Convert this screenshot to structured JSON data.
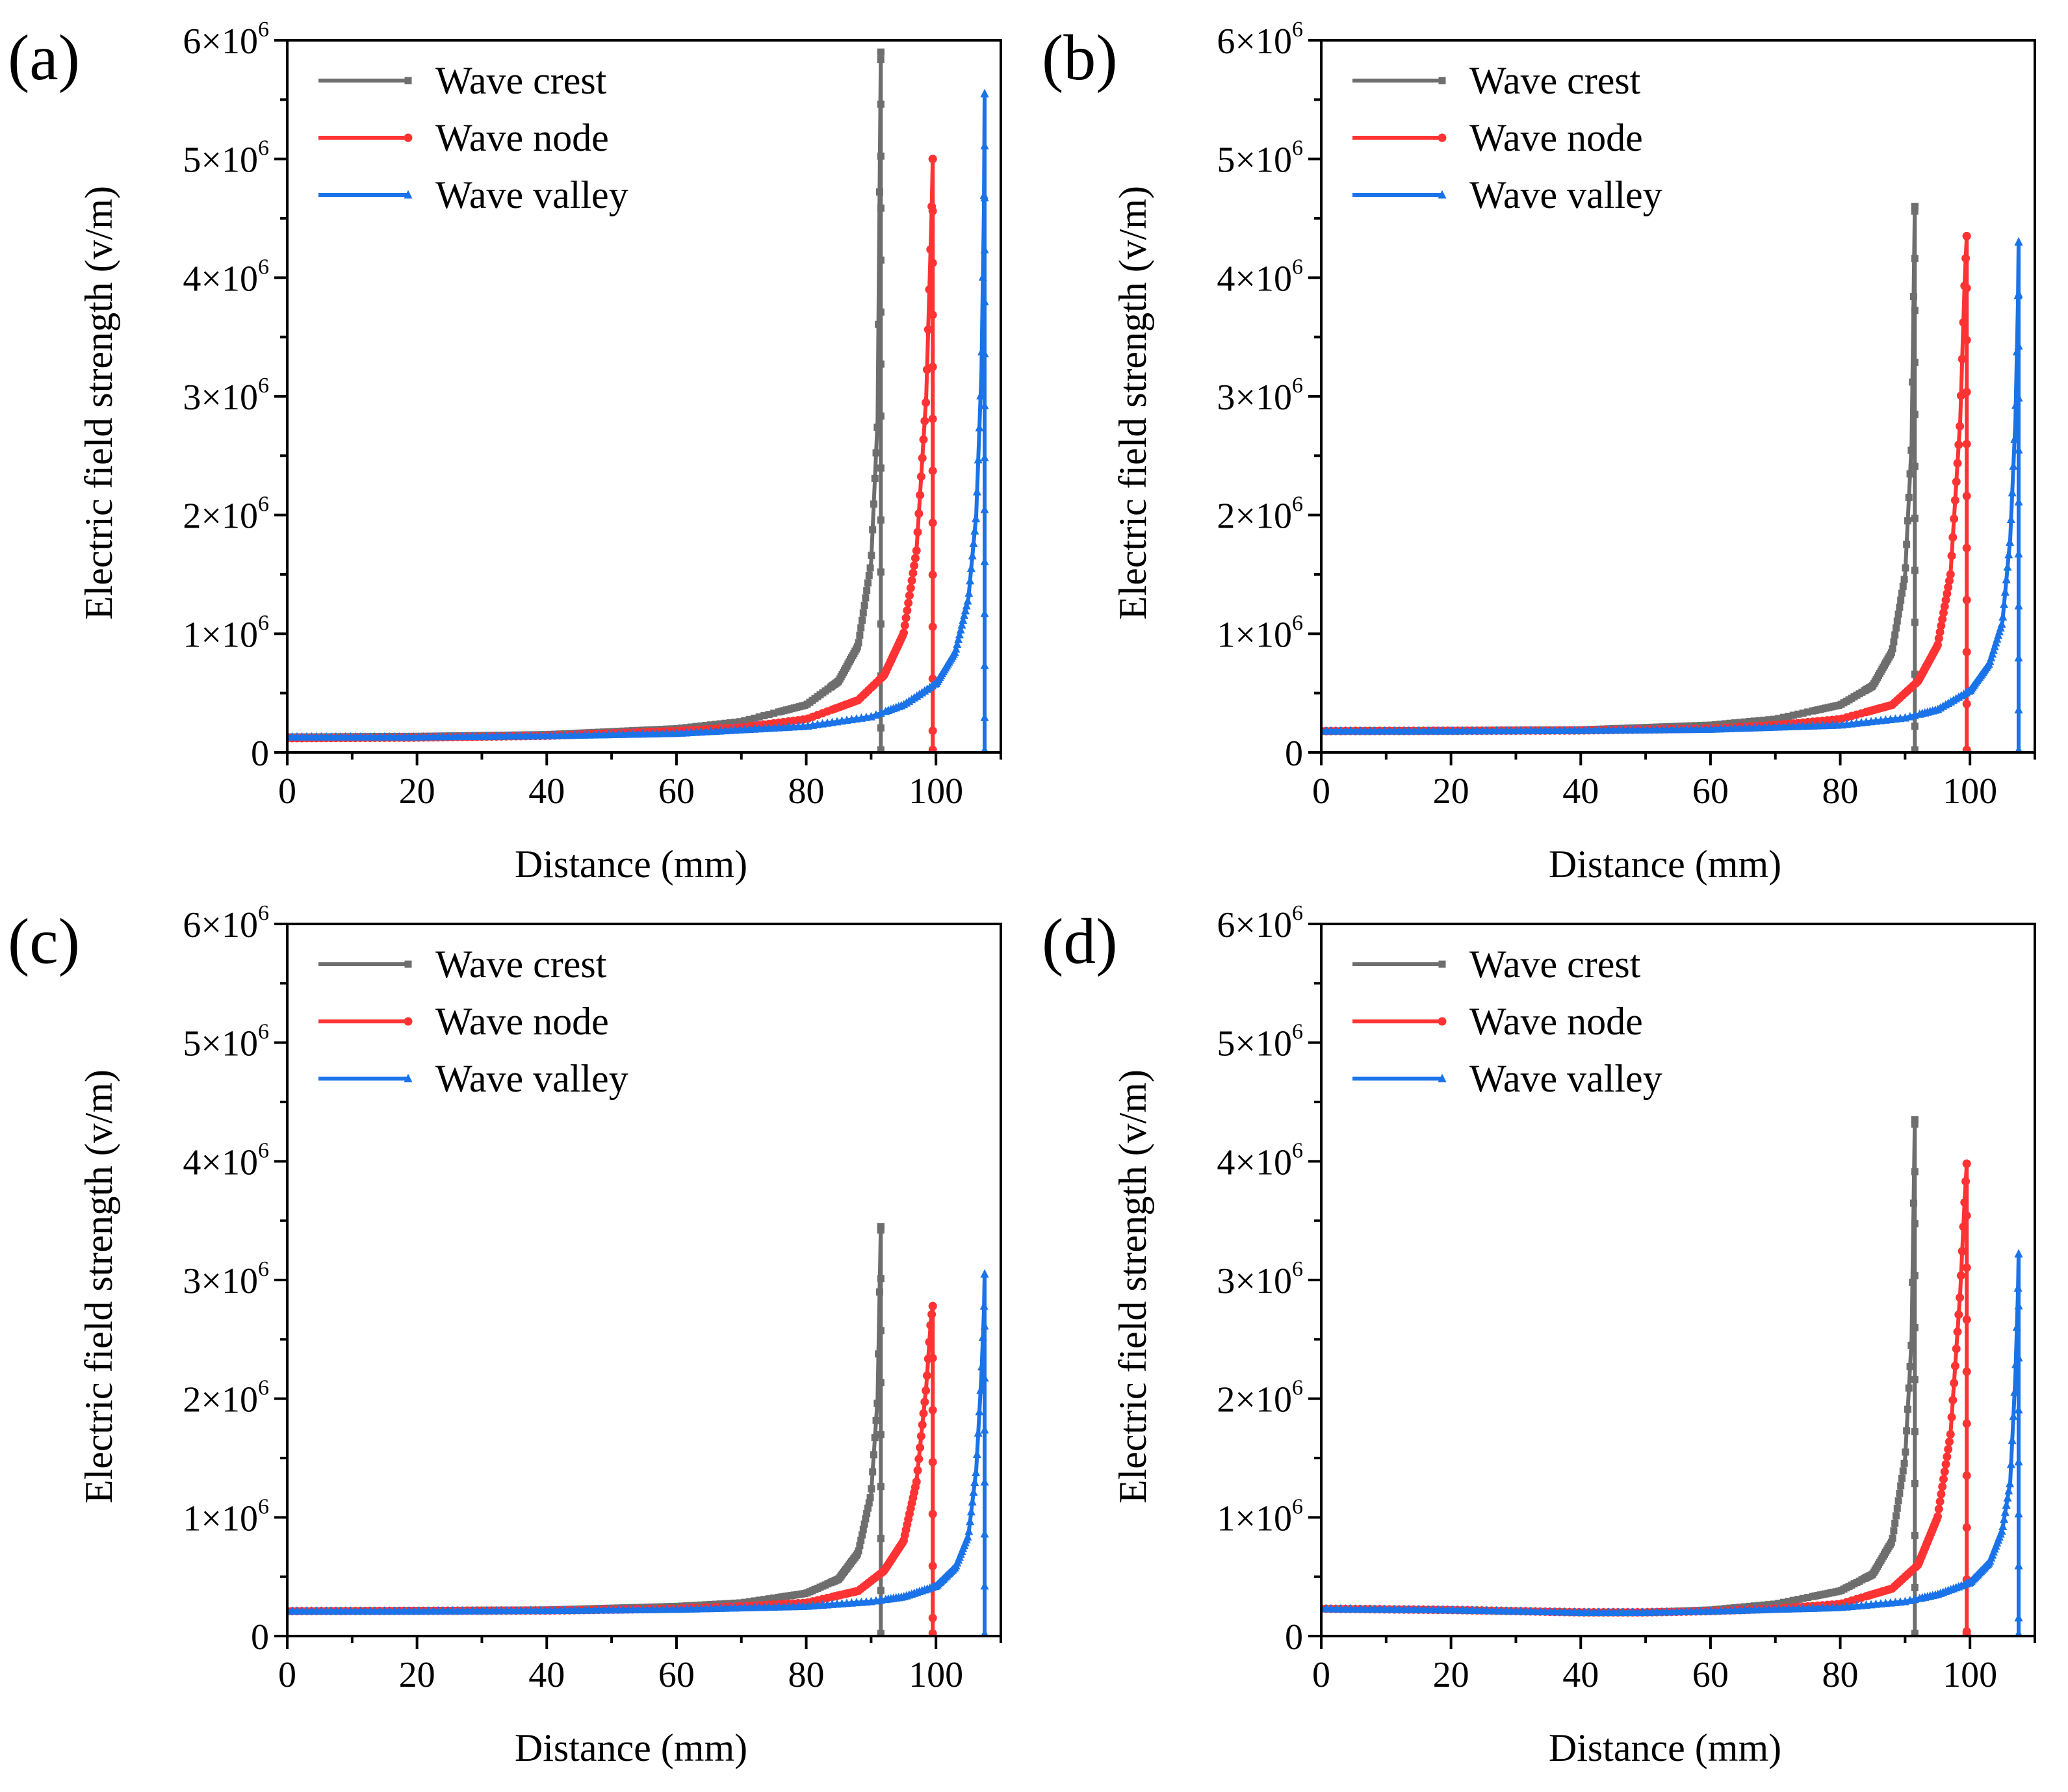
{
  "figure": {
    "layout": "2x2 grid",
    "panels": [
      "a",
      "b",
      "c",
      "d"
    ]
  },
  "colors": {
    "wave_crest": "#6e6e6e",
    "wave_node": "#ff3333",
    "wave_valley": "#1a73e8",
    "axis": "#000000"
  },
  "chart_data": [
    {
      "panel": "(a)",
      "type": "line",
      "xlabel": "Distance (mm)",
      "ylabel": "Electric field strength (v/m)",
      "xlim": [
        0,
        110
      ],
      "ylim": [
        0,
        6000000
      ],
      "xticks": [
        0,
        20,
        40,
        60,
        80,
        100
      ],
      "xtick_labels": [
        "0",
        "20",
        "40",
        "60",
        "80",
        "100"
      ],
      "yticks": [
        0,
        1000000,
        2000000,
        3000000,
        4000000,
        5000000,
        6000000
      ],
      "ytick_labels": [
        {
          "mantissa": "0",
          "exp": ""
        },
        {
          "mantissa": "1×10",
          "exp": "6"
        },
        {
          "mantissa": "2×10",
          "exp": "6"
        },
        {
          "mantissa": "3×10",
          "exp": "6"
        },
        {
          "mantissa": "4×10",
          "exp": "6"
        },
        {
          "mantissa": "5×10",
          "exp": "6"
        },
        {
          "mantissa": "6×10",
          "exp": "6"
        }
      ],
      "legend": [
        "Wave crest",
        "Wave node",
        "Wave valley"
      ],
      "legend_position": "top-left",
      "series": [
        {
          "name": "Wave crest",
          "marker": "square",
          "color": "#6e6e6e",
          "x": [
            0,
            20,
            40,
            60,
            70,
            80,
            85,
            88,
            90,
            91,
            91.5,
            91.5
          ],
          "y": [
            130000,
            135000,
            150000,
            200000,
            260000,
            400000,
            600000,
            900000,
            1600000,
            2800000,
            5900000,
            0
          ]
        },
        {
          "name": "Wave node",
          "marker": "circle",
          "color": "#ff3333",
          "x": [
            0,
            20,
            40,
            60,
            70,
            80,
            88,
            92,
            95,
            97,
            98.5,
            99.3,
            99.5,
            99.5
          ],
          "y": [
            120000,
            125000,
            140000,
            180000,
            210000,
            280000,
            440000,
            650000,
            1000000,
            1700000,
            3000000,
            4500000,
            5000000,
            0
          ]
        },
        {
          "name": "Wave valley",
          "marker": "triangle",
          "color": "#1a73e8",
          "x": [
            0,
            20,
            40,
            60,
            80,
            90,
            95,
            100,
            103,
            105,
            106.2,
            107,
            107.4,
            107.5,
            107.5
          ],
          "y": [
            130000,
            130000,
            140000,
            160000,
            220000,
            300000,
            400000,
            580000,
            850000,
            1300000,
            2000000,
            3200000,
            4600000,
            5550000,
            0
          ]
        }
      ]
    },
    {
      "panel": "(b)",
      "type": "line",
      "xlabel": "Distance (mm)",
      "ylabel": "Electric field strength (v/m)",
      "xlim": [
        0,
        110
      ],
      "ylim": [
        0,
        6000000
      ],
      "xticks": [
        0,
        20,
        40,
        60,
        80,
        100
      ],
      "xtick_labels": [
        "0",
        "20",
        "40",
        "60",
        "80",
        "100"
      ],
      "yticks": [
        0,
        1000000,
        2000000,
        3000000,
        4000000,
        5000000,
        6000000
      ],
      "ytick_labels": [
        {
          "mantissa": "0",
          "exp": ""
        },
        {
          "mantissa": "1×10",
          "exp": "6"
        },
        {
          "mantissa": "2×10",
          "exp": "6"
        },
        {
          "mantissa": "3×10",
          "exp": "6"
        },
        {
          "mantissa": "4×10",
          "exp": "6"
        },
        {
          "mantissa": "5×10",
          "exp": "6"
        },
        {
          "mantissa": "6×10",
          "exp": "6"
        }
      ],
      "legend": [
        "Wave crest",
        "Wave node",
        "Wave valley"
      ],
      "legend_position": "top-left",
      "series": [
        {
          "name": "Wave crest",
          "marker": "square",
          "color": "#6e6e6e",
          "x": [
            0,
            20,
            40,
            60,
            70,
            80,
            85,
            88,
            90,
            91,
            91.5,
            91.5
          ],
          "y": [
            180000,
            185000,
            190000,
            230000,
            280000,
            400000,
            560000,
            850000,
            1500000,
            2600000,
            4600000,
            0
          ]
        },
        {
          "name": "Wave node",
          "marker": "circle",
          "color": "#ff3333",
          "x": [
            0,
            20,
            40,
            60,
            70,
            80,
            88,
            92,
            95,
            97,
            98.5,
            99.2,
            99.5,
            99.5
          ],
          "y": [
            180000,
            182000,
            185000,
            200000,
            230000,
            280000,
            400000,
            600000,
            900000,
            1500000,
            2800000,
            4000000,
            4350000,
            0
          ]
        },
        {
          "name": "Wave valley",
          "marker": "triangle",
          "color": "#1a73e8",
          "x": [
            0,
            20,
            40,
            60,
            80,
            90,
            95,
            100,
            103,
            105,
            106.2,
            107,
            107.4,
            107.5,
            107.5
          ],
          "y": [
            180000,
            180000,
            185000,
            195000,
            230000,
            290000,
            360000,
            520000,
            750000,
            1100000,
            1800000,
            2800000,
            3800000,
            4300000,
            0
          ]
        }
      ]
    },
    {
      "panel": "(c)",
      "type": "line",
      "xlabel": "Distance (mm)",
      "ylabel": "Electric field strength (v/m)",
      "xlim": [
        0,
        110
      ],
      "ylim": [
        0,
        6000000
      ],
      "xticks": [
        0,
        20,
        40,
        60,
        80,
        100
      ],
      "xtick_labels": [
        "0",
        "20",
        "40",
        "60",
        "80",
        "100"
      ],
      "yticks": [
        0,
        1000000,
        2000000,
        3000000,
        4000000,
        5000000,
        6000000
      ],
      "ytick_labels": [
        {
          "mantissa": "0",
          "exp": ""
        },
        {
          "mantissa": "1×10",
          "exp": "6"
        },
        {
          "mantissa": "2×10",
          "exp": "6"
        },
        {
          "mantissa": "3×10",
          "exp": "6"
        },
        {
          "mantissa": "4×10",
          "exp": "6"
        },
        {
          "mantissa": "5×10",
          "exp": "6"
        },
        {
          "mantissa": "6×10",
          "exp": "6"
        }
      ],
      "legend": [
        "Wave crest",
        "Wave node",
        "Wave valley"
      ],
      "legend_position": "top-left",
      "series": [
        {
          "name": "Wave crest",
          "marker": "square",
          "color": "#6e6e6e",
          "x": [
            0,
            20,
            40,
            60,
            70,
            80,
            85,
            88,
            90,
            91,
            91.5,
            91.5
          ],
          "y": [
            210000,
            215000,
            220000,
            250000,
            280000,
            360000,
            480000,
            700000,
            1200000,
            2000000,
            3450000,
            0
          ]
        },
        {
          "name": "Wave node",
          "marker": "circle",
          "color": "#ff3333",
          "x": [
            0,
            20,
            40,
            60,
            70,
            80,
            88,
            92,
            95,
            97,
            98.5,
            99.2,
            99.5,
            99.5
          ],
          "y": [
            210000,
            212000,
            215000,
            230000,
            250000,
            280000,
            380000,
            550000,
            800000,
            1300000,
            2100000,
            2650000,
            2780000,
            0
          ]
        },
        {
          "name": "Wave valley",
          "marker": "triangle",
          "color": "#1a73e8",
          "x": [
            0,
            20,
            40,
            60,
            80,
            90,
            95,
            100,
            103,
            105,
            106.2,
            107,
            107.4,
            107.5,
            107.5
          ],
          "y": [
            210000,
            210000,
            215000,
            225000,
            250000,
            290000,
            330000,
            420000,
            580000,
            850000,
            1400000,
            2200000,
            2750000,
            3050000,
            0
          ]
        }
      ]
    },
    {
      "panel": "(d)",
      "type": "line",
      "xlabel": "Distance (mm)",
      "ylabel": "Electric field strength (v/m)",
      "xlim": [
        0,
        110
      ],
      "ylim": [
        0,
        6000000
      ],
      "xticks": [
        0,
        20,
        40,
        60,
        80,
        100
      ],
      "xtick_labels": [
        "0",
        "20",
        "40",
        "60",
        "80",
        "100"
      ],
      "yticks": [
        0,
        1000000,
        2000000,
        3000000,
        4000000,
        5000000,
        6000000
      ],
      "ytick_labels": [
        {
          "mantissa": "0",
          "exp": ""
        },
        {
          "mantissa": "1×10",
          "exp": "6"
        },
        {
          "mantissa": "2×10",
          "exp": "6"
        },
        {
          "mantissa": "3×10",
          "exp": "6"
        },
        {
          "mantissa": "4×10",
          "exp": "6"
        },
        {
          "mantissa": "5×10",
          "exp": "6"
        },
        {
          "mantissa": "6×10",
          "exp": "6"
        }
      ],
      "legend": [
        "Wave crest",
        "Wave node",
        "Wave valley"
      ],
      "legend_position": "top-left",
      "series": [
        {
          "name": "Wave crest",
          "marker": "square",
          "color": "#6e6e6e",
          "x": [
            0,
            20,
            40,
            50,
            60,
            70,
            80,
            85,
            88,
            90,
            91,
            91.5,
            91.5
          ],
          "y": [
            230000,
            220000,
            200000,
            200000,
            220000,
            270000,
            380000,
            520000,
            800000,
            1500000,
            2500000,
            4350000,
            0
          ]
        },
        {
          "name": "Wave node",
          "marker": "circle",
          "color": "#ff3333",
          "x": [
            0,
            20,
            40,
            50,
            60,
            70,
            80,
            88,
            92,
            95,
            97,
            98.5,
            99.2,
            99.5,
            99.5
          ],
          "y": [
            230000,
            220000,
            200000,
            200000,
            210000,
            230000,
            270000,
            400000,
            600000,
            1000000,
            1700000,
            2900000,
            3700000,
            3980000,
            0
          ]
        },
        {
          "name": "Wave valley",
          "marker": "triangle",
          "color": "#1a73e8",
          "x": [
            0,
            20,
            40,
            50,
            60,
            80,
            90,
            95,
            100,
            103,
            105,
            106.2,
            107,
            107.4,
            107.5,
            107.5
          ],
          "y": [
            230000,
            220000,
            200000,
            200000,
            210000,
            240000,
            290000,
            350000,
            450000,
            620000,
            900000,
            1300000,
            2200000,
            2900000,
            3220000,
            0
          ]
        }
      ]
    }
  ]
}
